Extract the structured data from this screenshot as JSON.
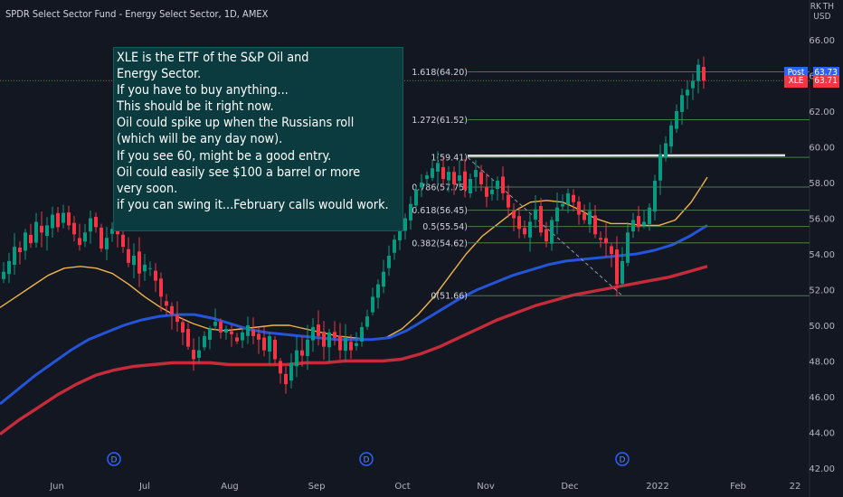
{
  "header": {
    "title": "SPDR Select Sector Fund - Energy Select Sector, 1D, AMEX"
  },
  "currency": {
    "line1": "RK TH",
    "line2": "USD"
  },
  "note": {
    "lines": [
      "XLE is the ETF of the S&P Oil and",
      "Energy Sector.",
      "If you have to buy anything...",
      "This should be it right now.",
      "Oil could spike up when the Russians roll",
      "(which will be any day now).",
      "If you see 60, might be a good entry.",
      "Oil could easily see $100 a barrel or more",
      "very soon.",
      "if you can swing it...February calls would work."
    ]
  },
  "price_tags": {
    "post": {
      "name": "Post",
      "value": "63.73",
      "color": "#2962ff"
    },
    "last": {
      "name": "XLE",
      "value": "63.71",
      "color": "#f23645"
    }
  },
  "colors": {
    "up": "#089981",
    "down": "#f23645",
    "ma_fast": "#f0b54a",
    "ma_mid": "#2454d8",
    "ma_slow": "#c62b39",
    "fib": "#4c7a4c",
    "fib_top": "#2962ff",
    "fib_label": "#d1d4dc"
  },
  "chart_data": {
    "type": "candlestick",
    "y_axis": {
      "range": [
        42,
        66.5
      ],
      "ticks": [
        "66.00",
        "64.00",
        "62.00",
        "60.00",
        "58.00",
        "56.00",
        "54.00",
        "52.00",
        "50.00",
        "48.00",
        "46.00",
        "44.00",
        "42.00"
      ]
    },
    "x_axis": {
      "labels": [
        "Jun",
        "Jul",
        "Aug",
        "Sep",
        "Oct",
        "Nov",
        "Dec",
        "2022",
        "Feb",
        "22"
      ]
    },
    "fib_levels": [
      {
        "label": "1.618(64.20)",
        "value": 64.2
      },
      {
        "label": "1.272(61.52)",
        "value": 61.52
      },
      {
        "label": "1(59.41)",
        "value": 59.41
      },
      {
        "label": "0.786(57.75)",
        "value": 57.75
      },
      {
        "label": "0.618(56.45)",
        "value": 56.45
      },
      {
        "label": "0.5(55.54)",
        "value": 55.54
      },
      {
        "label": "0.382(54.62)",
        "value": 54.62
      },
      {
        "label": "0(51.66)",
        "value": 51.66
      }
    ],
    "horizontal_line": {
      "value": 59.5,
      "color": "#e0e0e0"
    },
    "last_price": 63.71,
    "dividend_marker": "D",
    "closes": [
      53,
      53.6,
      54.4,
      54.1,
      55.2,
      54.6,
      55.8,
      55.2,
      55.6,
      56.2,
      55.5,
      56.3,
      55.6,
      55.1,
      54.5,
      55.2,
      56,
      55.5,
      54.3,
      54.9,
      55.4,
      55.1,
      54.4,
      53.5,
      53.9,
      52.9,
      53.4,
      53.2,
      52.5,
      51.6,
      51.1,
      50.6,
      50.2,
      49.6,
      48.8,
      48.1,
      48.6,
      49.4,
      49.8,
      50.2,
      49.6,
      49.8,
      49.5,
      49.1,
      49.6,
      50.0,
      49.4,
      49.2,
      48.6,
      49.4,
      48.1,
      47.3,
      46.7,
      47.9,
      48.6,
      48.3,
      49.2,
      49.9,
      49.4,
      48.8,
      49.6,
      49.3,
      48.6,
      49.3,
      48.6,
      49.0,
      49.9,
      50.5,
      51.6,
      52.3,
      53.0,
      53.9,
      54.8,
      55.5,
      56.0,
      56.8,
      57.6,
      58.0,
      58.4,
      58.8,
      59.1,
      58.2,
      58.6,
      57.9,
      58.4,
      57.6,
      58.2,
      58.7,
      57.9,
      57.2,
      57.6,
      58.1,
      57.4,
      56.6,
      56.0,
      55.4,
      55.1,
      55.8,
      56.5,
      55.2,
      54.7,
      55.9,
      56.6,
      56.8,
      57.4,
      56.9,
      56.2,
      55.9,
      56.4,
      55.1,
      54.8,
      54.6,
      54.0,
      52.3,
      53.6,
      55.2,
      55.9,
      55.5,
      55.8,
      56.6,
      58.1,
      59.6,
      60.2,
      61.2,
      62.0,
      62.9,
      63.2,
      63.7,
      64.6,
      63.71
    ],
    "moving_averages": [
      {
        "name": "fast",
        "values": [
          51,
          51.6,
          52.2,
          52.8,
          53.2,
          53.3,
          53.2,
          52.9,
          52.3,
          51.6,
          51.0,
          50.5,
          50.1,
          49.8,
          49.7,
          49.8,
          49.9,
          50.0,
          50.0,
          49.8,
          49.6,
          49.4,
          49.3,
          49.2,
          49.3,
          49.8,
          50.6,
          51.6,
          52.8,
          54.0,
          55.0,
          55.7,
          56.4,
          56.9,
          57.0,
          56.9,
          56.5,
          56.0,
          55.7,
          55.7,
          55.6,
          55.6,
          55.9,
          56.9,
          58.3
        ]
      },
      {
        "name": "mid",
        "values": [
          45.6,
          46.4,
          47.2,
          47.9,
          48.6,
          49.2,
          49.6,
          50.0,
          50.3,
          50.5,
          50.6,
          50.6,
          50.4,
          50.1,
          49.8,
          49.6,
          49.5,
          49.4,
          49.3,
          49.2,
          49.2,
          49.2,
          49.3,
          49.7,
          50.3,
          50.9,
          51.5,
          52.0,
          52.4,
          52.8,
          53.1,
          53.4,
          53.6,
          53.7,
          53.8,
          53.9,
          54.0,
          54.2,
          54.5,
          55.0,
          55.6
        ]
      },
      {
        "name": "slow",
        "values": [
          43.9,
          44.7,
          45.4,
          46.1,
          46.7,
          47.2,
          47.5,
          47.7,
          47.8,
          47.9,
          47.9,
          47.9,
          47.8,
          47.8,
          47.8,
          47.8,
          47.9,
          47.9,
          48.0,
          48.0,
          48.0,
          48.1,
          48.4,
          48.8,
          49.3,
          49.8,
          50.3,
          50.7,
          51.1,
          51.4,
          51.7,
          51.9,
          52.1,
          52.3,
          52.5,
          52.7,
          53.0,
          53.3
        ]
      }
    ]
  }
}
